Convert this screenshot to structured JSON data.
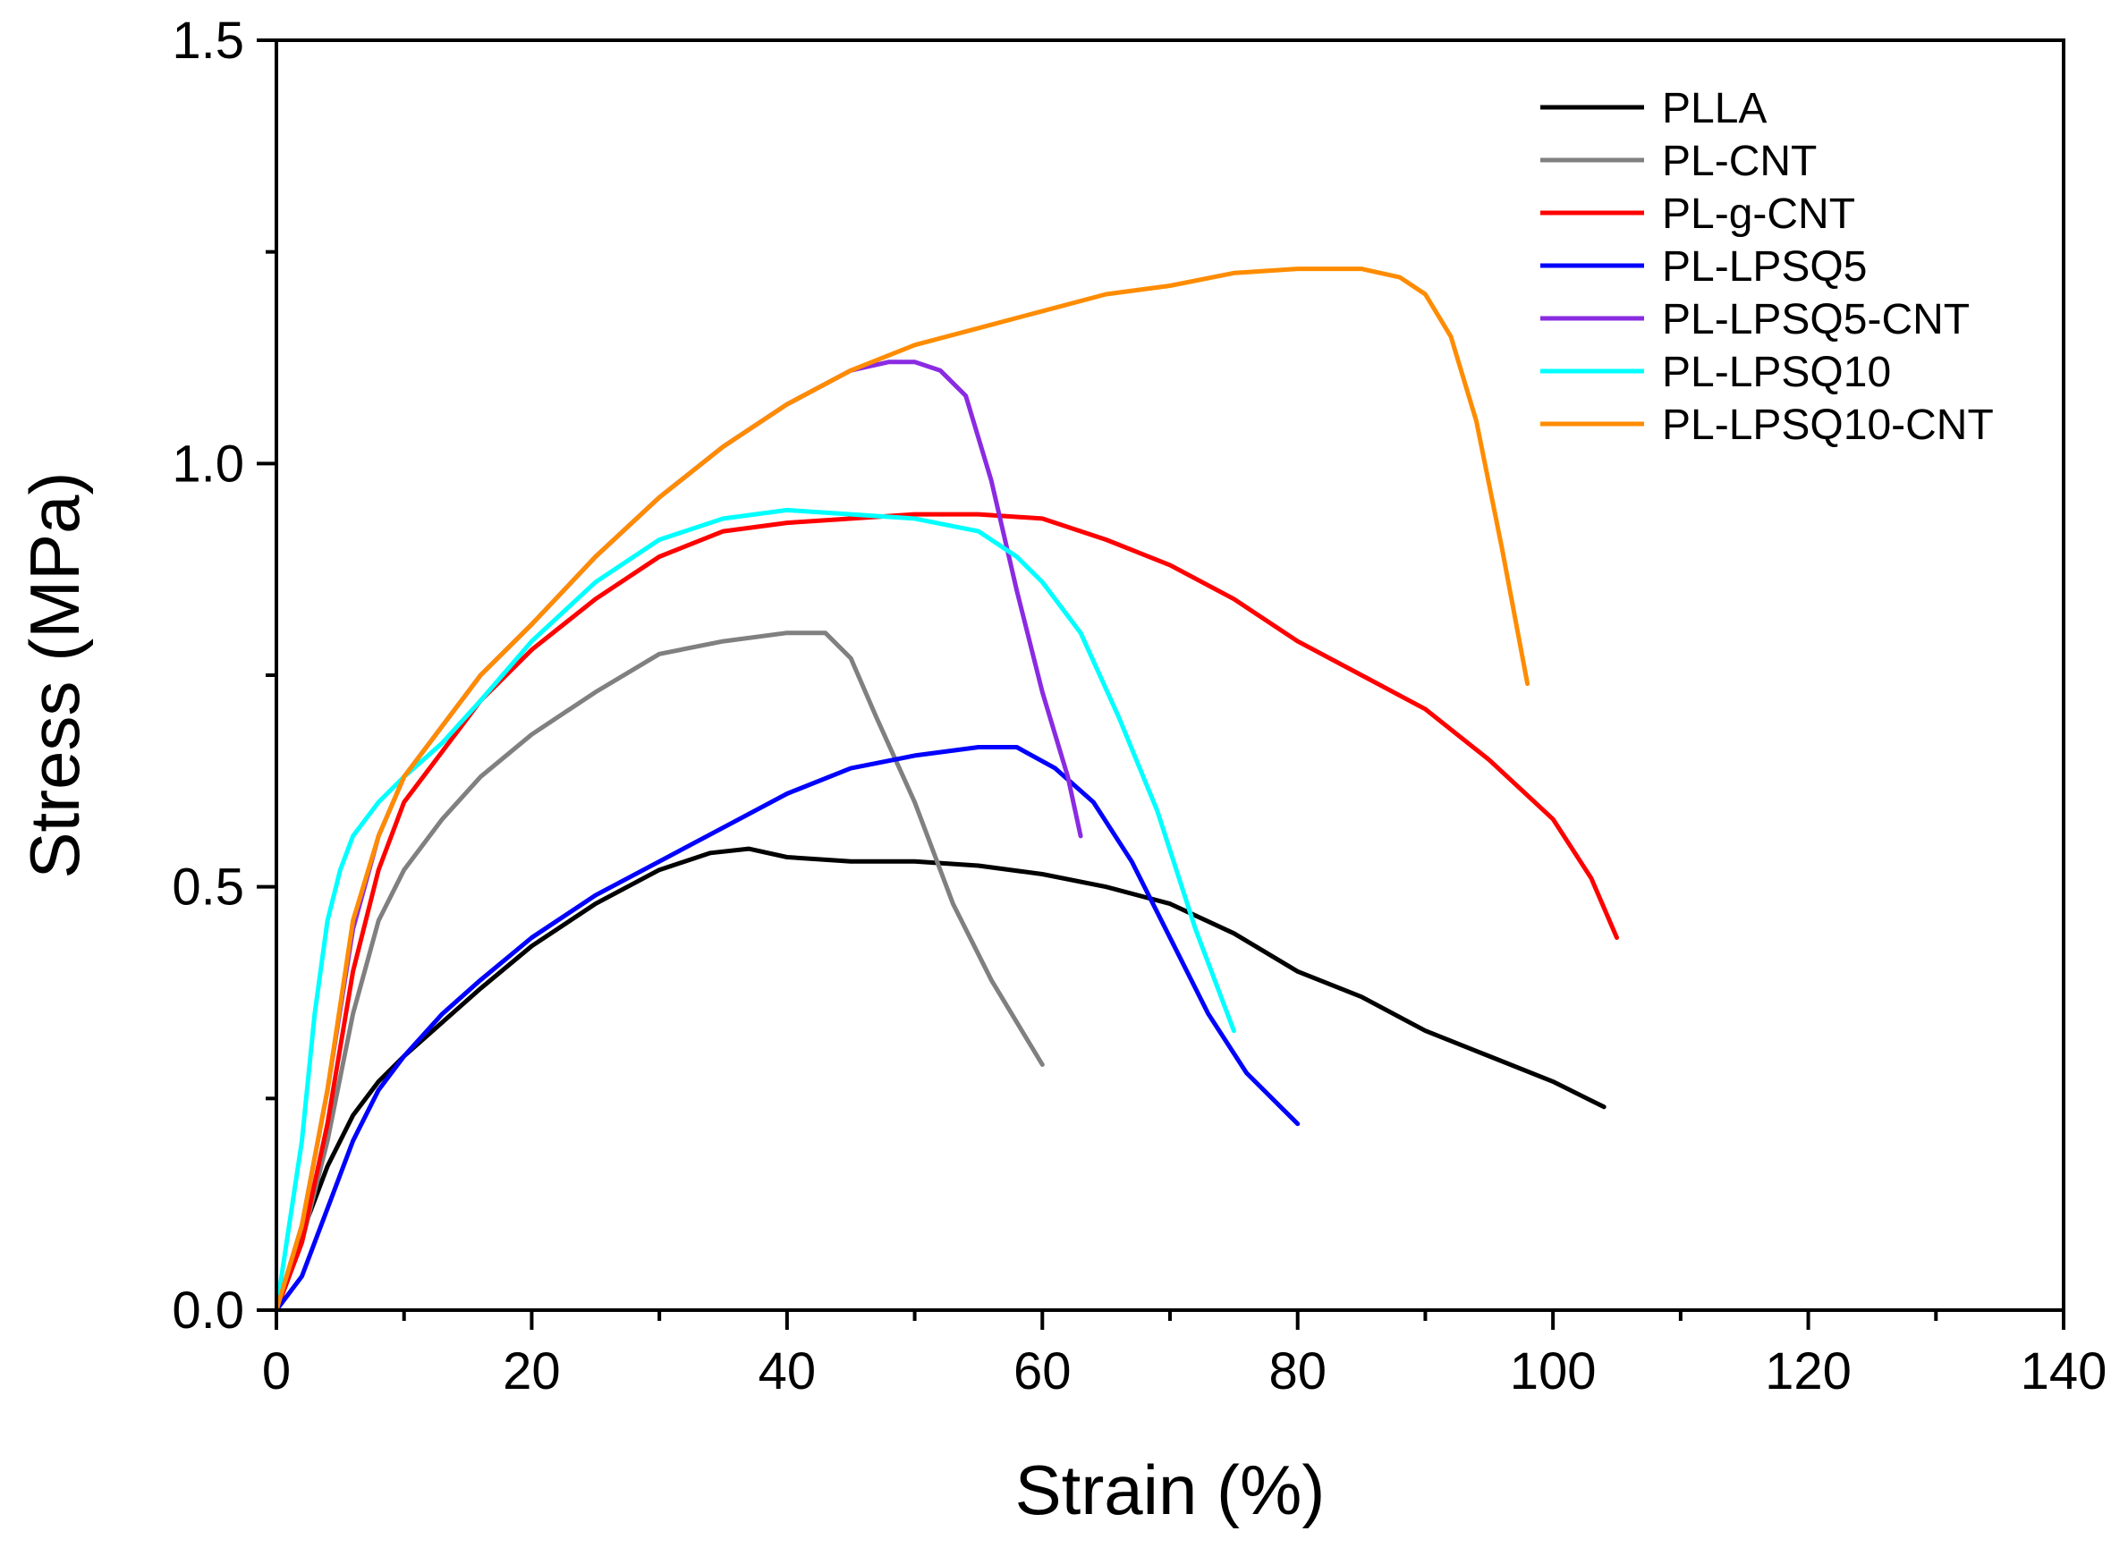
{
  "chart_data": {
    "type": "line",
    "title": "",
    "xlabel": "Strain (%)",
    "ylabel": "Stress (MPa)",
    "xlim": [
      0,
      140
    ],
    "ylim": [
      0,
      1.5
    ],
    "xticks": [
      0,
      20,
      40,
      60,
      80,
      100,
      120,
      140
    ],
    "xtick_labels": [
      "0",
      "20",
      "40",
      "60",
      "80",
      "100",
      "120",
      "140"
    ],
    "yticks": [
      0.0,
      0.5,
      1.0,
      1.5
    ],
    "ytick_labels": [
      "0.0",
      "0.5",
      "1.0",
      "1.5"
    ],
    "grid": false,
    "legend_position": "top-right",
    "series": [
      {
        "name": "PLLA",
        "color": "#000000",
        "x": [
          0,
          2,
          4,
          6,
          8,
          10,
          13,
          16,
          20,
          25,
          30,
          34,
          37,
          40,
          45,
          50,
          55,
          60,
          65,
          70,
          75,
          80,
          85,
          90,
          95,
          100,
          104
        ],
        "y": [
          0,
          0.09,
          0.17,
          0.23,
          0.27,
          0.3,
          0.34,
          0.38,
          0.43,
          0.48,
          0.52,
          0.54,
          0.545,
          0.535,
          0.53,
          0.53,
          0.525,
          0.515,
          0.5,
          0.48,
          0.445,
          0.4,
          0.37,
          0.33,
          0.3,
          0.27,
          0.24
        ]
      },
      {
        "name": "PL-CNT",
        "color": "#808080",
        "x": [
          0,
          2,
          4,
          6,
          8,
          10,
          13,
          16,
          20,
          25,
          30,
          35,
          40,
          43,
          45,
          47,
          50,
          53,
          56,
          58,
          60
        ],
        "y": [
          0,
          0.08,
          0.2,
          0.35,
          0.46,
          0.52,
          0.58,
          0.63,
          0.68,
          0.73,
          0.775,
          0.79,
          0.8,
          0.8,
          0.77,
          0.7,
          0.6,
          0.48,
          0.39,
          0.34,
          0.29
        ]
      },
      {
        "name": "PL-g-CNT",
        "color": "#ff0000",
        "x": [
          0,
          2,
          4,
          6,
          8,
          10,
          13,
          16,
          20,
          25,
          30,
          35,
          40,
          45,
          50,
          55,
          60,
          65,
          70,
          75,
          80,
          85,
          90,
          95,
          100,
          103,
          105
        ],
        "y": [
          0,
          0.08,
          0.22,
          0.4,
          0.52,
          0.6,
          0.66,
          0.72,
          0.78,
          0.84,
          0.89,
          0.92,
          0.93,
          0.935,
          0.94,
          0.94,
          0.935,
          0.91,
          0.88,
          0.84,
          0.79,
          0.75,
          0.71,
          0.65,
          0.58,
          0.51,
          0.44
        ]
      },
      {
        "name": "PL-LPSQ5",
        "color": "#0000ff",
        "x": [
          0,
          2,
          4,
          6,
          8,
          10,
          13,
          16,
          20,
          25,
          30,
          35,
          40,
          45,
          50,
          55,
          58,
          61,
          64,
          67,
          70,
          73,
          76,
          80
        ],
        "y": [
          0,
          0.04,
          0.12,
          0.2,
          0.26,
          0.3,
          0.35,
          0.39,
          0.44,
          0.49,
          0.53,
          0.57,
          0.61,
          0.64,
          0.655,
          0.665,
          0.665,
          0.64,
          0.6,
          0.53,
          0.44,
          0.35,
          0.28,
          0.22
        ]
      },
      {
        "name": "PL-LPSQ5-CNT",
        "color": "#8a2be2",
        "x": [
          0,
          2,
          4,
          6,
          8,
          10,
          13,
          16,
          20,
          25,
          30,
          35,
          40,
          45,
          48,
          50,
          52,
          54,
          56,
          58,
          60,
          62,
          63
        ],
        "y": [
          0,
          0.1,
          0.26,
          0.45,
          0.56,
          0.63,
          0.69,
          0.75,
          0.81,
          0.89,
          0.96,
          1.02,
          1.07,
          1.11,
          1.12,
          1.12,
          1.11,
          1.08,
          0.98,
          0.85,
          0.73,
          0.63,
          0.56
        ]
      },
      {
        "name": "PL-LPSQ10",
        "color": "#00ffff",
        "x": [
          0,
          2,
          3,
          4,
          5,
          6,
          8,
          10,
          13,
          16,
          20,
          25,
          30,
          35,
          40,
          45,
          50,
          55,
          58,
          60,
          63,
          66,
          69,
          72,
          75
        ],
        "y": [
          0,
          0.2,
          0.35,
          0.46,
          0.52,
          0.56,
          0.6,
          0.63,
          0.67,
          0.72,
          0.79,
          0.86,
          0.91,
          0.935,
          0.945,
          0.94,
          0.935,
          0.92,
          0.89,
          0.86,
          0.8,
          0.7,
          0.59,
          0.45,
          0.33
        ]
      },
      {
        "name": "PL-LPSQ10-CNT",
        "color": "#ff8c00",
        "x": [
          0,
          2,
          4,
          6,
          8,
          10,
          13,
          16,
          20,
          25,
          30,
          35,
          40,
          45,
          50,
          55,
          60,
          65,
          70,
          75,
          80,
          85,
          88,
          90,
          92,
          94,
          96,
          98
        ],
        "y": [
          0,
          0.1,
          0.26,
          0.46,
          0.56,
          0.63,
          0.69,
          0.75,
          0.81,
          0.89,
          0.96,
          1.02,
          1.07,
          1.11,
          1.14,
          1.16,
          1.18,
          1.2,
          1.21,
          1.225,
          1.23,
          1.23,
          1.22,
          1.2,
          1.15,
          1.05,
          0.9,
          0.74
        ]
      }
    ]
  }
}
